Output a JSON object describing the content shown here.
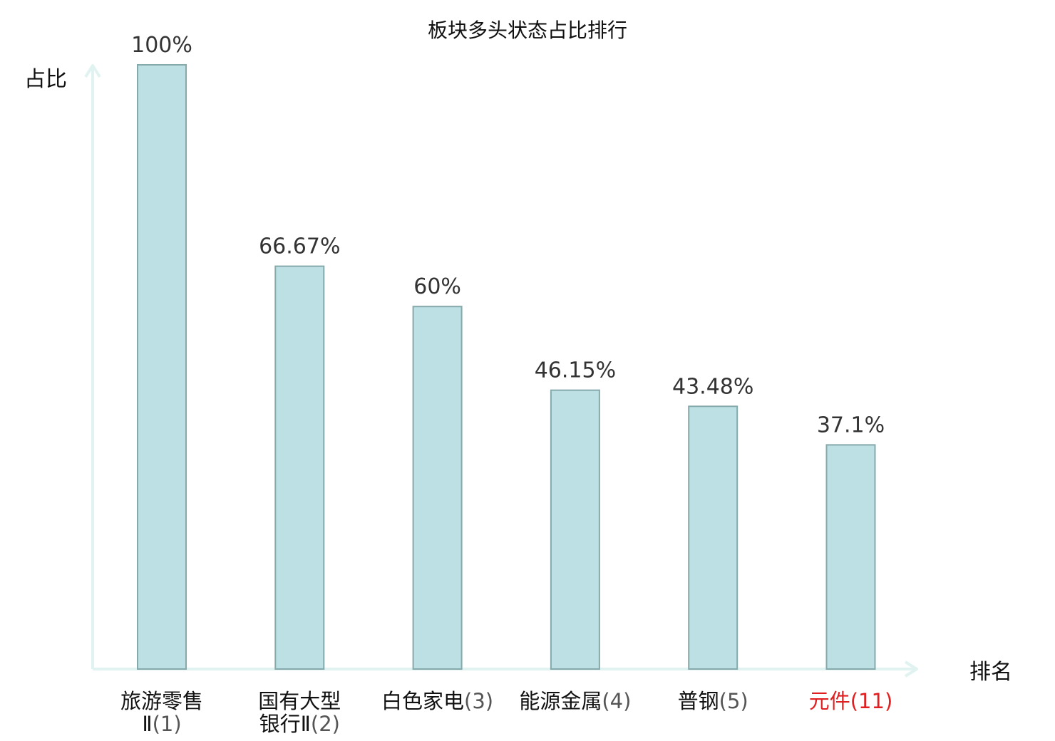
{
  "chart_data": {
    "type": "bar",
    "title": "板块多头状态占比排行",
    "ylabel": "占比",
    "xlabel": "排名",
    "ylim": [
      0,
      100
    ],
    "grid": false,
    "legend": "none",
    "categories": [
      {
        "name_lines": [
          "旅游零售",
          "Ⅱ"
        ],
        "rank": "(1)",
        "highlight": false
      },
      {
        "name_lines": [
          "国有大型",
          "银行Ⅱ"
        ],
        "rank": "(2)",
        "highlight": false
      },
      {
        "name_lines": [
          "白色家电"
        ],
        "rank": "(3)",
        "highlight": false
      },
      {
        "name_lines": [
          "能源金属"
        ],
        "rank": "(4)",
        "highlight": false
      },
      {
        "name_lines": [
          "普钢"
        ],
        "rank": "(5)",
        "highlight": false
      },
      {
        "name_lines": [
          "元件"
        ],
        "rank": "(11)",
        "highlight": true
      }
    ],
    "values": [
      100,
      66.67,
      60,
      46.15,
      43.48,
      37.1
    ],
    "value_labels": [
      "100%",
      "66.67%",
      "60%",
      "46.15%",
      "43.48%",
      "37.1%"
    ]
  },
  "colors": {
    "bar_fill": "#bce0e3",
    "bar_stroke": "#86a9ac",
    "axis": "#e0f3f0",
    "text": "#111111",
    "value_text": "#333333",
    "rank_text": "#555555",
    "highlight": "#e02020"
  }
}
